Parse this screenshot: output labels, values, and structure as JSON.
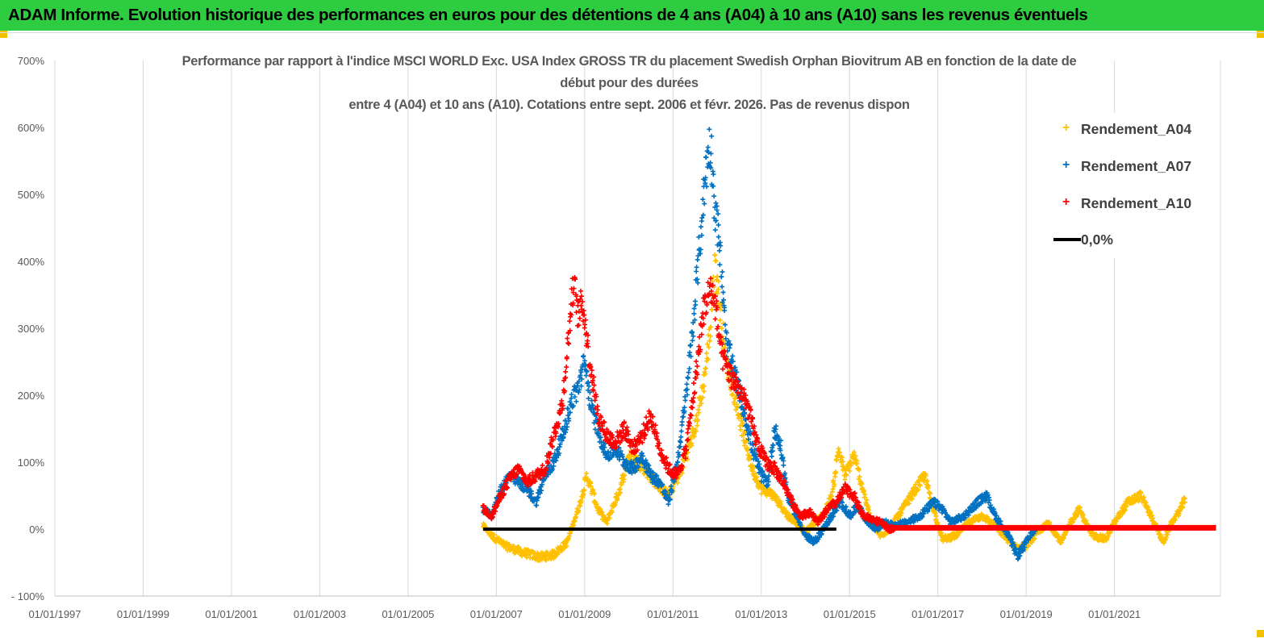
{
  "banner": {
    "title": "ADAM Informe. Evolution historique des performances en euros pour des détentions de 4 ans (A04) à 10 ans (A10) sans les revenus éventuels"
  },
  "colors": {
    "banner_bg": "#2ecc40",
    "corner": "#f2c200",
    "a04": "#ffc000",
    "a07": "#0070c0",
    "a10": "#ff0000",
    "zero_line": "#000000",
    "grid": "#d9d9d9"
  },
  "chart_data": {
    "type": "scatter",
    "title_lines": [
      "Performance par rapport à l'indice MSCI WORLD Exc. USA Index GROSS TR  du placement Swedish Orphan Biovitrum AB en fonction de la date de",
      "début pour des durées",
      "entre 4 (A04) et 10 ans (A10). Cotations entre sept. 2006 et févr. 2026. Pas de revenus dispon"
    ],
    "x_range": [
      1997.0,
      2023.4
    ],
    "x_ticks": [
      {
        "value": 1997,
        "label": "01/01/1997"
      },
      {
        "value": 1999,
        "label": "01/01/1999"
      },
      {
        "value": 2001,
        "label": "01/01/2001"
      },
      {
        "value": 2003,
        "label": "01/01/2003"
      },
      {
        "value": 2005,
        "label": "01/01/2005"
      },
      {
        "value": 2007,
        "label": "01/01/2007"
      },
      {
        "value": 2009,
        "label": "01/01/2009"
      },
      {
        "value": 2011,
        "label": "01/01/2011"
      },
      {
        "value": 2013,
        "label": "01/01/2013"
      },
      {
        "value": 2015,
        "label": "01/01/2015"
      },
      {
        "value": 2017,
        "label": "01/01/2017"
      },
      {
        "value": 2019,
        "label": "01/01/2019"
      },
      {
        "value": 2021,
        "label": "01/01/2021"
      }
    ],
    "y_range": [
      -100,
      700
    ],
    "y_ticks": [
      {
        "value": 700,
        "label": "700%"
      },
      {
        "value": 600,
        "label": "600%"
      },
      {
        "value": 500,
        "label": "500%"
      },
      {
        "value": 400,
        "label": "400%"
      },
      {
        "value": 300,
        "label": "300%"
      },
      {
        "value": 200,
        "label": "200%"
      },
      {
        "value": 100,
        "label": "100%"
      },
      {
        "value": 0,
        "label": "0%"
      },
      {
        "value": -100,
        "label": "- 100%"
      }
    ],
    "series": [
      {
        "name": "Rendement_A04",
        "color": "#ffc000",
        "points": [
          [
            2006.7,
            5
          ],
          [
            2006.9,
            -10
          ],
          [
            2007.2,
            -25
          ],
          [
            2007.6,
            -35
          ],
          [
            2008.0,
            -42
          ],
          [
            2008.3,
            -38
          ],
          [
            2008.6,
            -20
          ],
          [
            2008.75,
            10
          ],
          [
            2008.9,
            40
          ],
          [
            2009.05,
            80
          ],
          [
            2009.3,
            30
          ],
          [
            2009.5,
            10
          ],
          [
            2009.8,
            60
          ],
          [
            2010.0,
            110
          ],
          [
            2010.3,
            95
          ],
          [
            2010.6,
            70
          ],
          [
            2010.9,
            50
          ],
          [
            2011.2,
            90
          ],
          [
            2011.5,
            150
          ],
          [
            2011.7,
            220
          ],
          [
            2011.85,
            300
          ],
          [
            2011.95,
            400
          ],
          [
            2012.05,
            340
          ],
          [
            2012.2,
            250
          ],
          [
            2012.4,
            200
          ],
          [
            2012.6,
            140
          ],
          [
            2012.8,
            90
          ],
          [
            2013.0,
            60
          ],
          [
            2013.2,
            55
          ],
          [
            2013.4,
            40
          ],
          [
            2013.6,
            20
          ],
          [
            2013.8,
            10
          ],
          [
            2014.0,
            -5
          ],
          [
            2014.2,
            10
          ],
          [
            2014.4,
            20
          ],
          [
            2014.6,
            50
          ],
          [
            2014.75,
            120
          ],
          [
            2014.9,
            80
          ],
          [
            2015.1,
            110
          ],
          [
            2015.3,
            60
          ],
          [
            2015.5,
            10
          ],
          [
            2015.7,
            -10
          ],
          [
            2015.9,
            0
          ],
          [
            2016.2,
            30
          ],
          [
            2016.5,
            60
          ],
          [
            2016.7,
            80
          ],
          [
            2016.9,
            30
          ],
          [
            2017.1,
            -15
          ],
          [
            2017.4,
            -10
          ],
          [
            2017.7,
            10
          ],
          [
            2018.0,
            20
          ],
          [
            2018.2,
            10
          ],
          [
            2018.5,
            -10
          ],
          [
            2018.8,
            -30
          ],
          [
            2019.0,
            -25
          ],
          [
            2019.2,
            -10
          ],
          [
            2019.5,
            10
          ],
          [
            2019.8,
            -20
          ],
          [
            2020.0,
            10
          ],
          [
            2020.2,
            30
          ],
          [
            2020.5,
            -10
          ],
          [
            2020.8,
            -15
          ],
          [
            2021.0,
            10
          ],
          [
            2021.3,
            40
          ],
          [
            2021.6,
            50
          ],
          [
            2021.9,
            10
          ],
          [
            2022.1,
            -20
          ],
          [
            2022.3,
            10
          ],
          [
            2022.5,
            30
          ],
          [
            2022.6,
            45
          ]
        ]
      },
      {
        "name": "Rendement_A07",
        "color": "#0070c0",
        "points": [
          [
            2006.7,
            30
          ],
          [
            2006.9,
            20
          ],
          [
            2007.1,
            60
          ],
          [
            2007.3,
            80
          ],
          [
            2007.5,
            70
          ],
          [
            2007.7,
            60
          ],
          [
            2007.9,
            40
          ],
          [
            2008.1,
            80
          ],
          [
            2008.3,
            100
          ],
          [
            2008.5,
            140
          ],
          [
            2008.7,
            190
          ],
          [
            2008.85,
            210
          ],
          [
            2009.0,
            250
          ],
          [
            2009.15,
            180
          ],
          [
            2009.3,
            150
          ],
          [
            2009.5,
            110
          ],
          [
            2009.7,
            120
          ],
          [
            2009.9,
            100
          ],
          [
            2010.1,
            90
          ],
          [
            2010.3,
            110
          ],
          [
            2010.5,
            80
          ],
          [
            2010.7,
            70
          ],
          [
            2010.9,
            40
          ],
          [
            2011.1,
            100
          ],
          [
            2011.3,
            200
          ],
          [
            2011.45,
            300
          ],
          [
            2011.6,
            420
          ],
          [
            2011.75,
            540
          ],
          [
            2011.85,
            580
          ],
          [
            2011.95,
            480
          ],
          [
            2012.05,
            430
          ],
          [
            2012.2,
            280
          ],
          [
            2012.4,
            230
          ],
          [
            2012.6,
            180
          ],
          [
            2012.8,
            120
          ],
          [
            2013.0,
            80
          ],
          [
            2013.15,
            70
          ],
          [
            2013.3,
            150
          ],
          [
            2013.45,
            120
          ],
          [
            2013.6,
            50
          ],
          [
            2013.8,
            20
          ],
          [
            2014.0,
            -10
          ],
          [
            2014.2,
            -20
          ],
          [
            2014.4,
            0
          ],
          [
            2014.6,
            20
          ],
          [
            2014.8,
            40
          ],
          [
            2015.0,
            20
          ],
          [
            2015.2,
            35
          ],
          [
            2015.4,
            10
          ],
          [
            2015.6,
            0
          ],
          [
            2015.8,
            10
          ],
          [
            2016.0,
            5
          ],
          [
            2016.3,
            10
          ],
          [
            2016.6,
            20
          ],
          [
            2016.9,
            40
          ],
          [
            2017.1,
            30
          ],
          [
            2017.3,
            10
          ],
          [
            2017.6,
            20
          ],
          [
            2017.9,
            40
          ],
          [
            2018.1,
            50
          ],
          [
            2018.3,
            20
          ],
          [
            2018.6,
            -10
          ],
          [
            2018.8,
            -40
          ],
          [
            2019.0,
            -20
          ],
          [
            2019.2,
            0
          ]
        ]
      },
      {
        "name": "Rendement_A10",
        "color": "#ff0000",
        "points": [
          [
            2006.7,
            30
          ],
          [
            2006.9,
            20
          ],
          [
            2007.1,
            50
          ],
          [
            2007.3,
            75
          ],
          [
            2007.5,
            90
          ],
          [
            2007.7,
            70
          ],
          [
            2007.9,
            80
          ],
          [
            2008.1,
            90
          ],
          [
            2008.3,
            140
          ],
          [
            2008.5,
            190
          ],
          [
            2008.65,
            300
          ],
          [
            2008.75,
            370
          ],
          [
            2008.85,
            320
          ],
          [
            2008.95,
            340
          ],
          [
            2009.1,
            260
          ],
          [
            2009.3,
            170
          ],
          [
            2009.5,
            140
          ],
          [
            2009.7,
            130
          ],
          [
            2009.9,
            150
          ],
          [
            2010.1,
            120
          ],
          [
            2010.3,
            140
          ],
          [
            2010.5,
            170
          ],
          [
            2010.7,
            120
          ],
          [
            2010.9,
            90
          ],
          [
            2011.1,
            80
          ],
          [
            2011.3,
            120
          ],
          [
            2011.5,
            220
          ],
          [
            2011.7,
            330
          ],
          [
            2011.85,
            360
          ],
          [
            2011.95,
            340
          ],
          [
            2012.1,
            260
          ],
          [
            2012.3,
            230
          ],
          [
            2012.5,
            210
          ],
          [
            2012.7,
            180
          ],
          [
            2012.9,
            130
          ],
          [
            2013.1,
            100
          ],
          [
            2013.3,
            90
          ],
          [
            2013.5,
            70
          ],
          [
            2013.7,
            40
          ],
          [
            2013.9,
            20
          ],
          [
            2014.1,
            25
          ],
          [
            2014.3,
            10
          ],
          [
            2014.5,
            30
          ],
          [
            2014.7,
            40
          ],
          [
            2014.9,
            60
          ],
          [
            2015.1,
            50
          ],
          [
            2015.3,
            20
          ],
          [
            2015.5,
            15
          ],
          [
            2015.7,
            10
          ],
          [
            2015.9,
            0
          ],
          [
            2016.0,
            2
          ]
        ]
      },
      {
        "name": "0,0%",
        "color": "#000000",
        "line_segments": [
          [
            2006.7,
            2014.7
          ]
        ]
      }
    ],
    "legend_position": "top-right",
    "grid": "vertical"
  },
  "legend": {
    "items": [
      {
        "label": "Rendement_A04",
        "color": "#ffc000",
        "kind": "marker"
      },
      {
        "label": "Rendement_A07",
        "color": "#0070c0",
        "kind": "marker"
      },
      {
        "label": "Rendement_A10",
        "color": "#ff0000",
        "kind": "marker"
      },
      {
        "label": "0,0%",
        "color": "#000000",
        "kind": "line"
      }
    ]
  }
}
